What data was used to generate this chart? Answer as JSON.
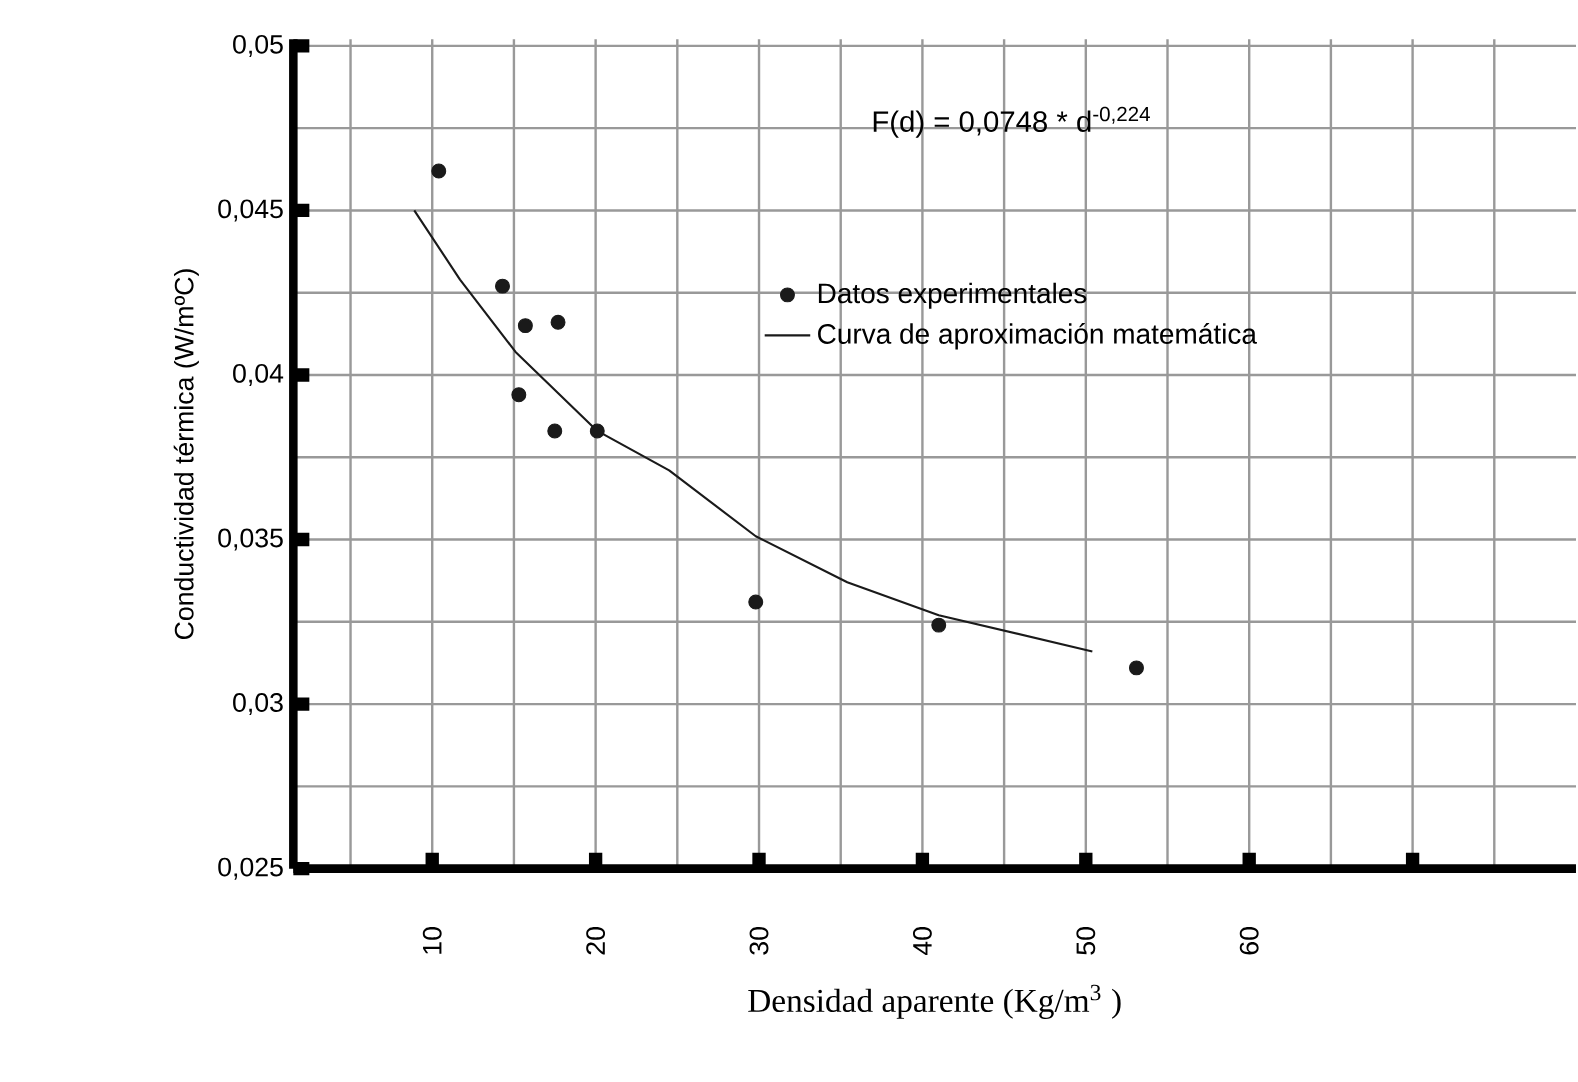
{
  "chart_data": {
    "type": "scatter",
    "xlabel": "Densidad aparente (Kg/m$^{3}$ )",
    "ylabel": "Conductividad térmica (W/mºC)",
    "annotations": [
      "F(d) = 0,0748 * d$^{-0,224}$"
    ],
    "xlim": [
      1.5,
      80
    ],
    "ylim": [
      0.025,
      0.0502
    ],
    "xticks": [
      10,
      20,
      30,
      40,
      50,
      60,
      {
        "value": 70,
        "label": null
      }
    ],
    "yticks": [
      {
        "value": 0.025,
        "label": "0,025"
      },
      {
        "value": 0.03,
        "label": "0,03"
      },
      {
        "value": 0.035,
        "label": "0,035"
      },
      {
        "value": 0.04,
        "label": "0,04"
      },
      {
        "value": 0.045,
        "label": "0,045"
      },
      {
        "value": 0.05,
        "label": "0,05"
      }
    ],
    "grid": true,
    "legend": "top right",
    "series": [
      {
        "name": "Datos experimentales",
        "marker": "circle",
        "color": "#1a1a1a",
        "x": [
          10.4,
          14.3,
          15.7,
          17.7,
          15.3,
          17.5,
          20.1,
          29.8,
          41.0,
          53.1
        ],
        "values": [
          0.0462,
          0.0427,
          0.0415,
          0.0416,
          0.0394,
          0.0383,
          0.0383,
          0.0331,
          0.0324,
          0.0311
        ]
      },
      {
        "name": "Curva de aproximación matemática",
        "type": "line",
        "marker": "none",
        "color": "#1a1a1a",
        "x": [
          8.9,
          11.7,
          15.1,
          20.1,
          24.5,
          29.8,
          35.4,
          41.0,
          50.4
        ],
        "values": [
          0.045,
          0.0429,
          0.0407,
          0.0383,
          0.0371,
          0.0351,
          0.0337,
          0.0327,
          0.0316
        ]
      }
    ]
  }
}
